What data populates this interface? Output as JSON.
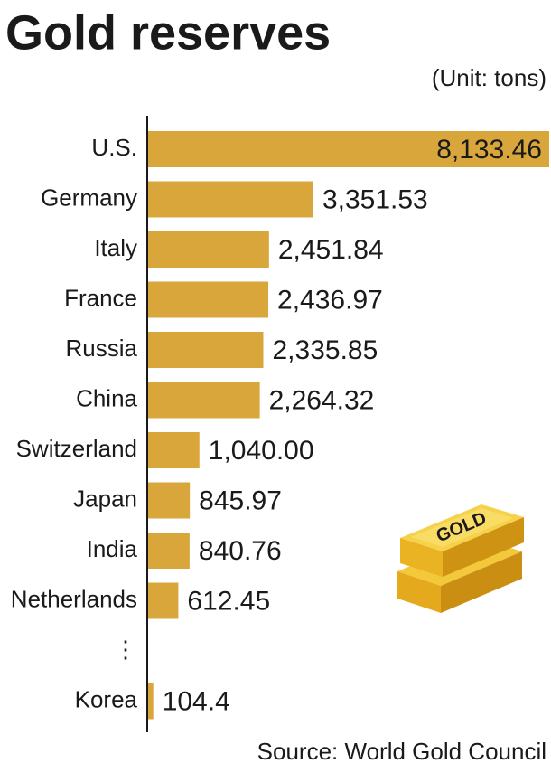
{
  "chart_data": {
    "type": "hbar",
    "title": "Gold reserves",
    "subtitle": "(Unit: tons)",
    "source": "Source: World Gold Council",
    "categories": [
      "U.S.",
      "Germany",
      "Italy",
      "France",
      "Russia",
      "China",
      "Switzerland",
      "Japan",
      "India",
      "Netherlands",
      "⋮",
      "Korea"
    ],
    "values": [
      8133.46,
      3351.53,
      2451.84,
      2436.97,
      2335.85,
      2264.32,
      1040.0,
      845.97,
      840.76,
      612.45,
      null,
      104.4
    ],
    "value_labels": [
      "8,133.46",
      "3,351.53",
      "2,451.84",
      "2,436.97",
      "2,335.85",
      "2,264.32",
      "1,040.00",
      "845.97",
      "840.76",
      "612.45",
      null,
      "104.4"
    ],
    "color": "#d9a63c",
    "label_colors": [
      "#1a1a1a",
      "#1a1a1a",
      "#1a1a1a",
      "#1a1a1a",
      "#1a1a1a",
      "#1a1a1a",
      "#1a1a1a",
      "#1a1a1a",
      "#1a1a1a",
      "#1a1a1a",
      "#1a1a1a",
      "#b0252a"
    ]
  },
  "illustration": {
    "label": "GOLD"
  }
}
